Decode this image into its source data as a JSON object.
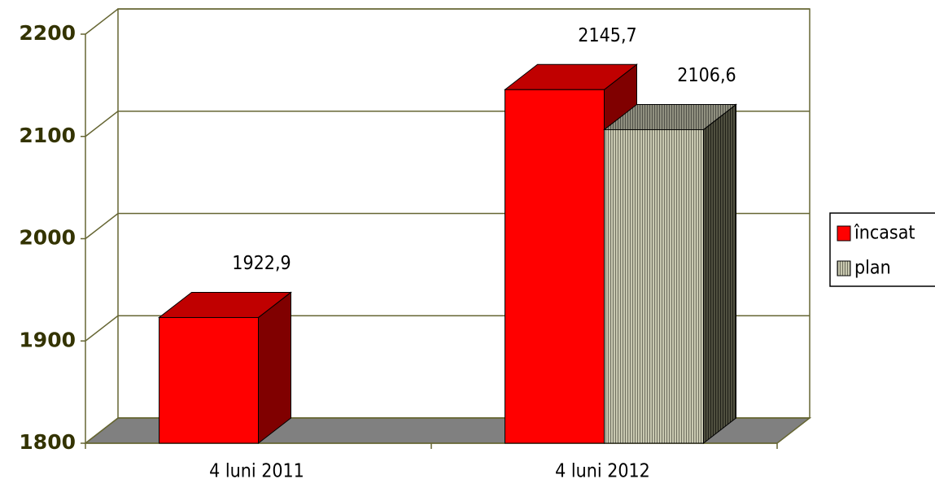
{
  "chart_data": {
    "type": "bar3d",
    "categories": [
      "4 luni 2011",
      "4 luni 2012"
    ],
    "series": [
      {
        "name": "încasat",
        "color": "#ff0000",
        "values": [
          1922.9,
          2145.7
        ],
        "value_labels": [
          "1922,9",
          "2145,7"
        ]
      },
      {
        "name": "plan",
        "color": "#a8a890",
        "values": [
          null,
          2106.6
        ],
        "value_labels": [
          null,
          "2106,6"
        ]
      }
    ],
    "ylim": [
      1800,
      2200
    ],
    "yticks": [
      1800,
      1900,
      2000,
      2100,
      2200
    ],
    "grid": true,
    "legend": "right"
  }
}
